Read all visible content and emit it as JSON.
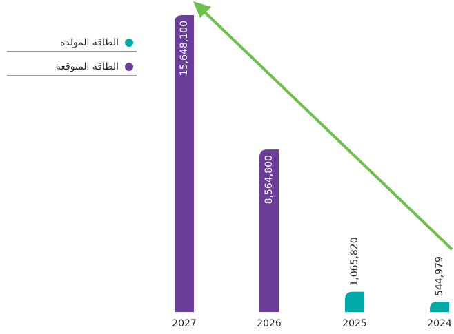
{
  "chart_data": {
    "type": "bar",
    "categories": [
      "2027",
      "2026",
      "2025",
      "2024"
    ],
    "series": [
      {
        "name": "الطاقة المولدة",
        "color": "#00a9a5",
        "values": [
          null,
          null,
          1065820,
          544979
        ],
        "value_labels": [
          null,
          null,
          "1,065,820",
          "544,979"
        ]
      },
      {
        "name": "الطاقة المتوقعة",
        "color": "#6a3d98",
        "values": [
          15648100,
          8564800,
          null,
          null
        ],
        "value_labels": [
          "15,648,100",
          "8,564,800",
          null,
          null
        ]
      }
    ]
  }
}
